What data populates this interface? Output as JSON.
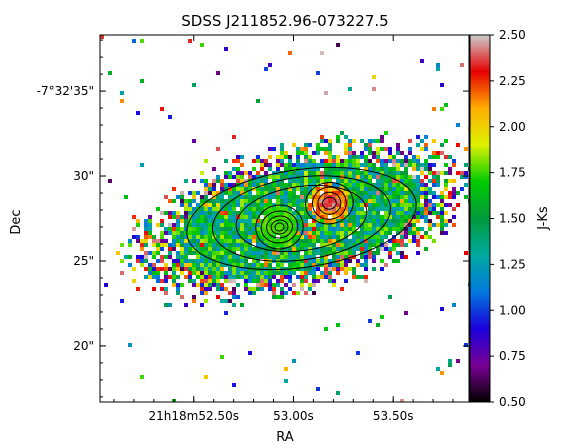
{
  "chart_data": {
    "type": "heatmap",
    "title": "SDSS J211852.96-073227.5",
    "xlabel": "RA",
    "ylabel": "Dec",
    "colorbar_label": "J-Ks",
    "x_ticks": [
      {
        "label": "21h18m52.50s",
        "value": 52.5
      },
      {
        "label": "53.00s",
        "value": 53.0
      },
      {
        "label": "53.50s",
        "value": 53.5
      }
    ],
    "y_ticks": [
      {
        "label": "-7°32'35\"",
        "value": 35
      },
      {
        "label": "30\"",
        "value": 30
      },
      {
        "label": "25\"",
        "value": 25
      },
      {
        "label": "20\"",
        "value": 20
      }
    ],
    "xlim": [
      52.03,
      53.88
    ],
    "ylim": [
      16.7,
      38.3
    ],
    "colorbar_ticks": [
      "0.50",
      "0.75",
      "1.00",
      "1.25",
      "1.50",
      "1.75",
      "2.00",
      "2.25",
      "2.50"
    ],
    "colorbar_range": [
      0.5,
      2.5
    ],
    "colormap": "nipy_spectral",
    "colormap_stops": [
      "#000000",
      "#7a0094",
      "#1a00dd",
      "#0079dd",
      "#00aaa0",
      "#009a3c",
      "#00cc00",
      "#ddf200",
      "#ffae00",
      "#e70000",
      "#cccccc"
    ],
    "contours": [
      {
        "center": [
          52.93,
          27.0
        ],
        "radii": [
          [
            0.02,
            0.3
          ],
          [
            0.035,
            0.55
          ],
          [
            0.055,
            0.85
          ],
          [
            0.08,
            1.2
          ],
          [
            0.11,
            1.55
          ]
        ]
      },
      {
        "center": [
          53.18,
          28.4
        ],
        "radii": [
          [
            0.03,
            0.45
          ],
          [
            0.055,
            0.75
          ],
          [
            0.085,
            1.05
          ],
          [
            0.12,
            1.35
          ]
        ]
      },
      {
        "center": [
          53.04,
          27.5
        ],
        "radii": [
          [
            0.33,
            2.1
          ],
          [
            0.45,
            2.7
          ],
          [
            0.58,
            3.2
          ]
        ]
      }
    ]
  }
}
